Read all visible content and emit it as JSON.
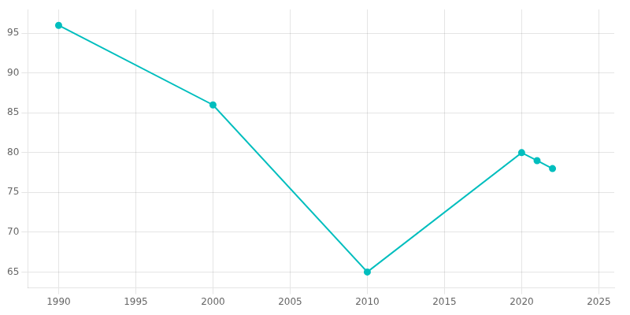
{
  "chart_data": {
    "type": "line",
    "x": [
      1990,
      2000,
      2010,
      2020,
      2021,
      2022
    ],
    "values": [
      96,
      86,
      65,
      80,
      79,
      78
    ],
    "color": "#00BEBE",
    "marker": "circle",
    "xlim": [
      1988,
      2026
    ],
    "xticks": [
      1990,
      1995,
      2000,
      2005,
      2010,
      2015,
      2020,
      2025
    ],
    "ylim": [
      63,
      98
    ],
    "yticks": [
      65,
      70,
      75,
      80,
      85,
      90,
      95
    ],
    "grid": true
  }
}
